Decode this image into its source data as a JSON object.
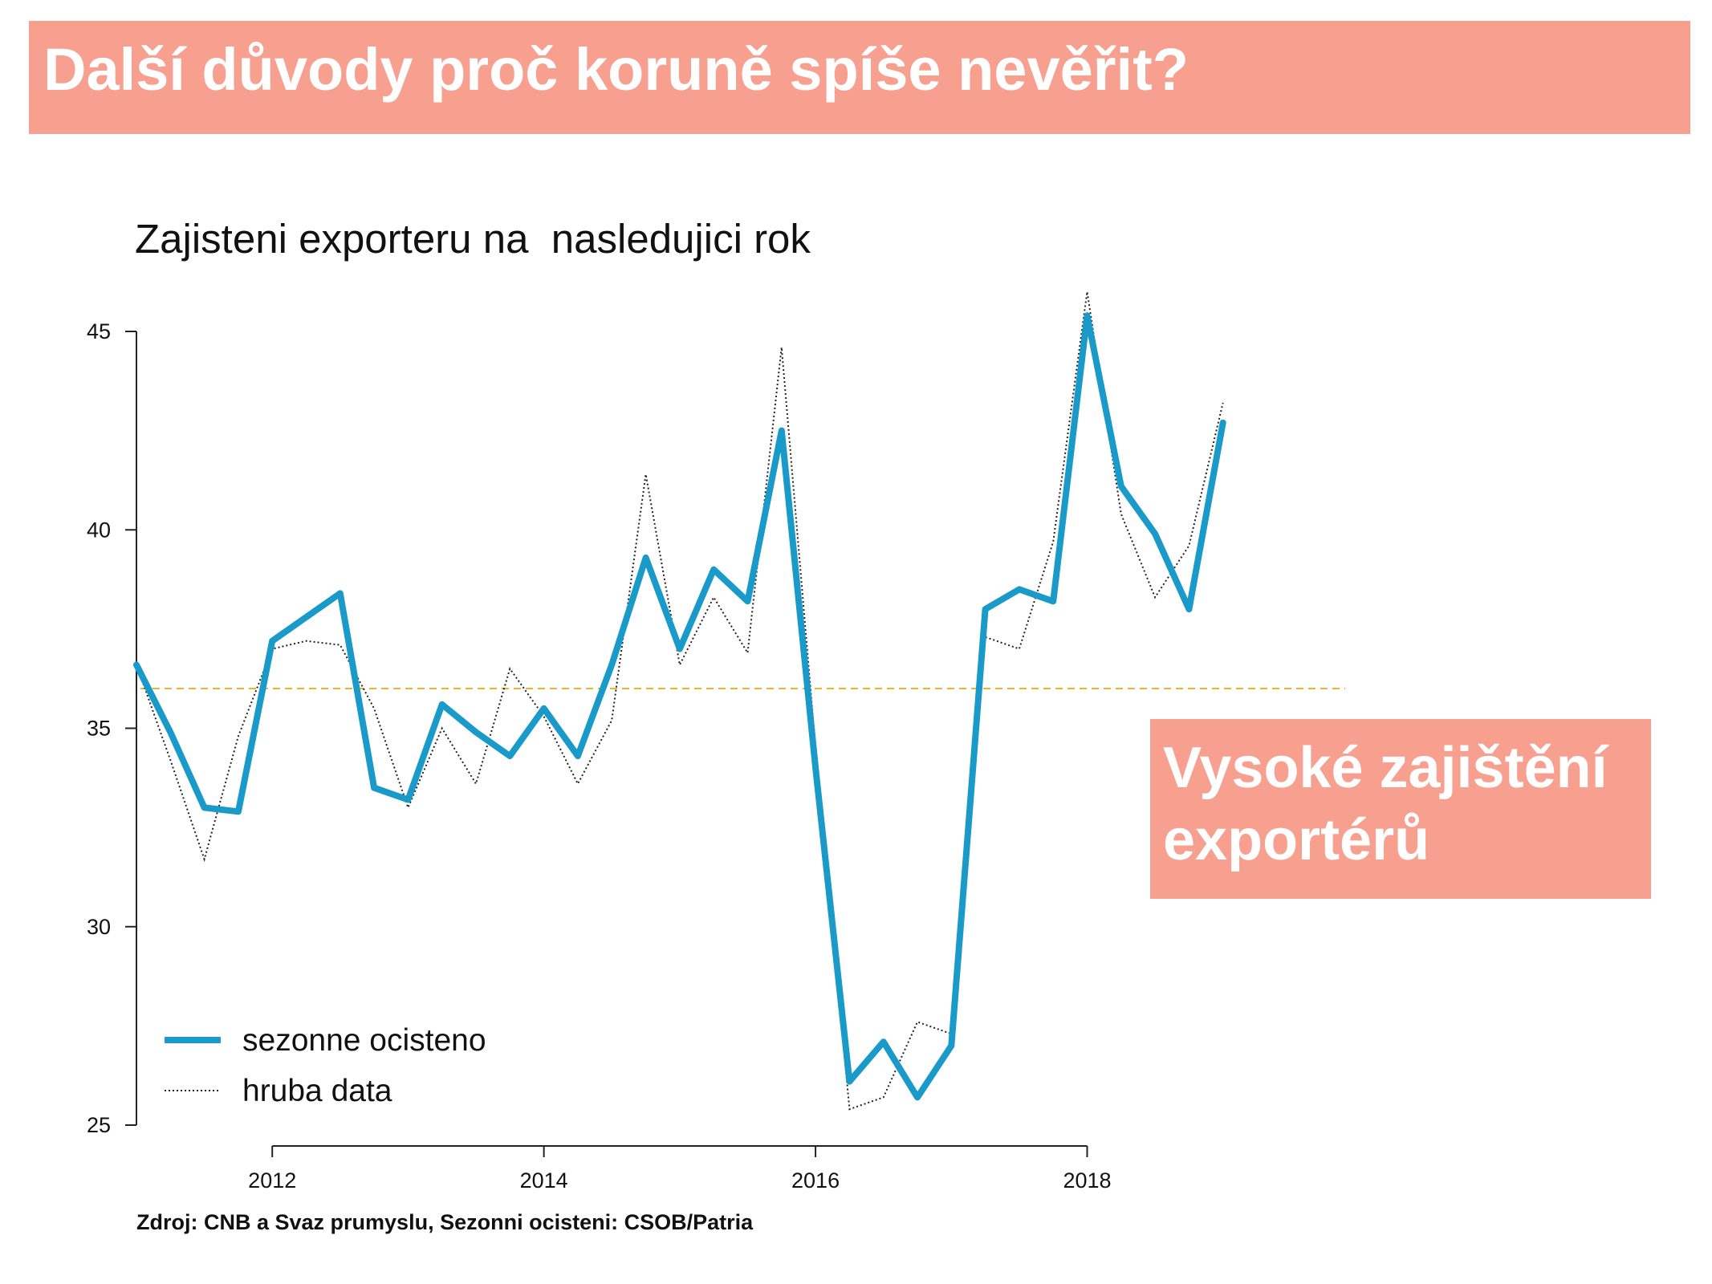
{
  "banner": {
    "title": "Další důvody proč koruně spíše nevěřit?"
  },
  "callout": {
    "line1": "Vysoké zajištění",
    "line2": "exportérů"
  },
  "source": "Zdroj: CNB a Svaz prumyslu, Sezonni ocisteni: CSOB/Patria",
  "colors": {
    "banner": "#f8a08f",
    "seasonal_line": "#1a9ac9",
    "raw_line": "#222222",
    "reference_line": "#f0b429"
  },
  "chart_data": {
    "type": "line",
    "title": "Zajisteni exporteru na  nasledujici rok",
    "xlabel": "",
    "ylabel": "",
    "xlim": [
      2011.0,
      2019.9
    ],
    "ylim": [
      25,
      45
    ],
    "x_ticks": [
      2012,
      2014,
      2016,
      2018
    ],
    "y_ticks": [
      25,
      30,
      35,
      40,
      45
    ],
    "reference_line": 36.0,
    "grid": false,
    "legend_position": "bottom-left",
    "x": [
      2011.0,
      2011.25,
      2011.5,
      2011.75,
      2012.0,
      2012.25,
      2012.5,
      2012.75,
      2013.0,
      2013.25,
      2013.5,
      2013.75,
      2014.0,
      2014.25,
      2014.5,
      2014.75,
      2015.0,
      2015.25,
      2015.5,
      2015.75,
      2016.0,
      2016.25,
      2016.5,
      2016.75,
      2017.0,
      2017.25,
      2017.5,
      2017.75,
      2018.0,
      2018.25,
      2018.5,
      2018.75,
      2019.0
    ],
    "series": [
      {
        "name": "sezonne ocisteno",
        "style": "solid",
        "values": [
          36.6,
          34.9,
          33.0,
          32.9,
          37.2,
          37.8,
          38.4,
          33.5,
          33.2,
          35.6,
          34.9,
          34.3,
          35.5,
          34.3,
          36.6,
          39.3,
          37.0,
          39.0,
          38.2,
          42.5,
          34.0,
          26.1,
          27.1,
          25.7,
          27.0,
          38.0,
          38.5,
          38.2,
          45.4,
          41.1,
          39.9,
          38.0,
          42.7
        ]
      },
      {
        "name": "hruba data",
        "style": "dotted",
        "values": [
          36.6,
          34.2,
          31.7,
          34.8,
          37.0,
          37.2,
          37.1,
          35.5,
          33.0,
          35.0,
          33.6,
          36.5,
          35.3,
          33.6,
          35.2,
          41.4,
          36.6,
          38.3,
          36.9,
          44.6,
          34.5,
          25.4,
          25.7,
          27.6,
          27.3,
          37.3,
          37.0,
          39.7,
          46.0,
          40.4,
          38.3,
          39.6,
          43.2
        ]
      }
    ]
  }
}
